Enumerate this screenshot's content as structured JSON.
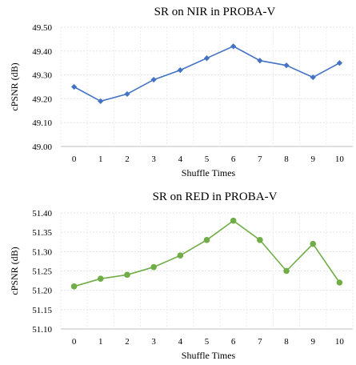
{
  "chart_data": [
    {
      "type": "line",
      "title": "SR on NIR in PROBA-V",
      "xlabel": "Shuffle Times",
      "ylabel": "cPSNR (dB)",
      "categories": [
        "0",
        "1",
        "2",
        "3",
        "4",
        "5",
        "6",
        "7",
        "8",
        "9",
        "10"
      ],
      "yticks": [
        "49.00",
        "49.10",
        "49.20",
        "49.30",
        "49.40",
        "49.50"
      ],
      "ylim": [
        49.0,
        49.5
      ],
      "grid": true,
      "marker": "diamond",
      "color": "#4472C4",
      "series": [
        {
          "values": [
            49.25,
            49.19,
            49.22,
            49.28,
            49.32,
            49.37,
            49.42,
            49.36,
            49.34,
            49.29,
            49.35
          ]
        }
      ]
    },
    {
      "type": "line",
      "title": "SR on RED in PROBA-V",
      "xlabel": "Shuffle Times",
      "ylabel": "cPSNR (dB)",
      "categories": [
        "0",
        "1",
        "2",
        "3",
        "4",
        "5",
        "6",
        "7",
        "8",
        "9",
        "10"
      ],
      "yticks": [
        "51.10",
        "51.15",
        "51.20",
        "51.25",
        "51.30",
        "51.35",
        "51.40"
      ],
      "ylim": [
        51.1,
        51.4
      ],
      "grid": true,
      "marker": "circle",
      "color": "#70AD47",
      "series": [
        {
          "values": [
            51.21,
            51.23,
            51.24,
            51.26,
            51.29,
            51.33,
            51.38,
            51.33,
            51.25,
            51.32,
            51.22
          ]
        }
      ]
    }
  ]
}
